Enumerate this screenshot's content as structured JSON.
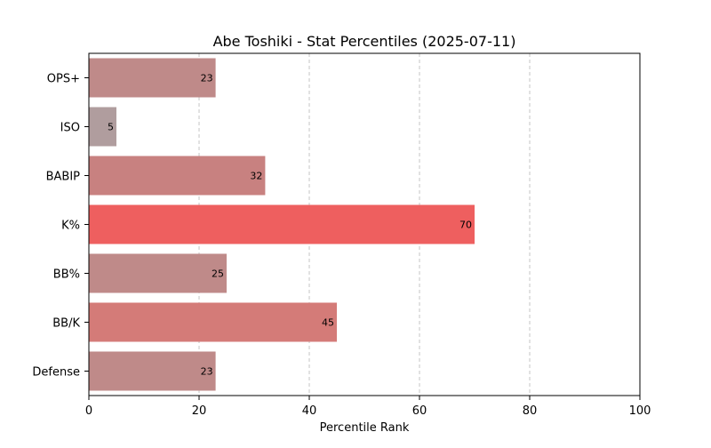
{
  "chart_data": {
    "type": "bar",
    "orientation": "horizontal",
    "title": "Abe Toshiki - Stat Percentiles (2025-07-11)",
    "xlabel": "Percentile Rank",
    "ylabel": "",
    "xlim": [
      0,
      100
    ],
    "xticks": [
      0,
      20,
      40,
      60,
      80,
      100
    ],
    "grid": "x-dashed",
    "categories": [
      "OPS+",
      "ISO",
      "BABIP",
      "K%",
      "BB%",
      "BB/K",
      "Defense"
    ],
    "values": [
      23,
      5,
      32,
      70,
      25,
      45,
      23
    ],
    "colors": [
      "#bf8a89",
      "#b09d9e",
      "#c88180",
      "#ee5f5f",
      "#bf8a89",
      "#d47b78",
      "#bf8a89"
    ]
  }
}
